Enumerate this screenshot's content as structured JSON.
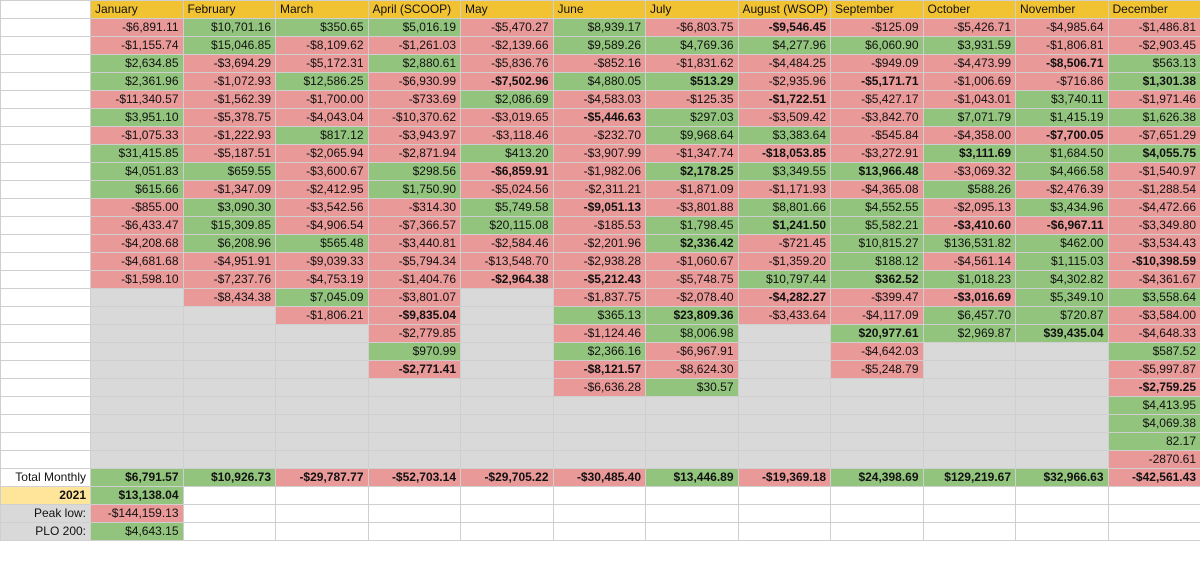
{
  "months": [
    "January",
    "February",
    "March",
    "April (SCOOP)",
    "May",
    "June",
    "July",
    "August (WSOP)",
    "September",
    "October",
    "November",
    "December"
  ],
  "grid": [
    [
      [
        "-$6,891.11",
        "r"
      ],
      [
        "$10,701.16",
        "g"
      ],
      [
        "$350.65",
        "g"
      ],
      [
        "$5,016.19",
        "g"
      ],
      [
        "-$5,470.27",
        "r"
      ],
      [
        "$8,939.17",
        "g"
      ],
      [
        "-$6,803.75",
        "r"
      ],
      [
        "-$9,546.45",
        "rb"
      ],
      [
        "-$125.09",
        "r"
      ],
      [
        "-$5,426.71",
        "r"
      ],
      [
        "-$4,985.64",
        "r"
      ],
      [
        "-$1,486.81",
        "r"
      ]
    ],
    [
      [
        "-$1,155.74",
        "r"
      ],
      [
        "$15,046.85",
        "g"
      ],
      [
        "-$8,109.62",
        "r"
      ],
      [
        "-$1,261.03",
        "r"
      ],
      [
        "-$2,139.66",
        "r"
      ],
      [
        "$9,589.26",
        "g"
      ],
      [
        "$4,769.36",
        "g"
      ],
      [
        "$4,277.96",
        "g"
      ],
      [
        "$6,060.90",
        "g"
      ],
      [
        "$3,931.59",
        "g"
      ],
      [
        "-$1,806.81",
        "r"
      ],
      [
        "-$2,903.45",
        "r"
      ]
    ],
    [
      [
        "$2,634.85",
        "g"
      ],
      [
        "-$3,694.29",
        "r"
      ],
      [
        "-$5,172.31",
        "r"
      ],
      [
        "$2,880.61",
        "g"
      ],
      [
        "-$5,836.76",
        "r"
      ],
      [
        "-$852.16",
        "r"
      ],
      [
        "-$1,831.62",
        "r"
      ],
      [
        "-$4,484.25",
        "r"
      ],
      [
        "-$949.09",
        "r"
      ],
      [
        "-$4,473.99",
        "r"
      ],
      [
        "-$8,506.71",
        "rb"
      ],
      [
        "$563.13",
        "g"
      ]
    ],
    [
      [
        "$2,361.96",
        "g"
      ],
      [
        "-$1,072.93",
        "r"
      ],
      [
        "$12,586.25",
        "g"
      ],
      [
        "-$6,930.99",
        "r"
      ],
      [
        "-$7,502.96",
        "rb"
      ],
      [
        "$4,880.05",
        "g"
      ],
      [
        "$513.29",
        "gb"
      ],
      [
        "-$2,935.96",
        "r"
      ],
      [
        "-$5,171.71",
        "rb"
      ],
      [
        "-$1,006.69",
        "r"
      ],
      [
        "-$716.86",
        "r"
      ],
      [
        "$1,301.38",
        "gb"
      ]
    ],
    [
      [
        "-$11,340.57",
        "r"
      ],
      [
        "-$1,562.39",
        "r"
      ],
      [
        "-$1,700.00",
        "r"
      ],
      [
        "-$733.69",
        "r"
      ],
      [
        "$2,086.69",
        "g"
      ],
      [
        "-$4,583.03",
        "r"
      ],
      [
        "-$125.35",
        "r"
      ],
      [
        "-$1,722.51",
        "rb"
      ],
      [
        "-$5,427.17",
        "r"
      ],
      [
        "-$1,043.01",
        "r"
      ],
      [
        "$3,740.11",
        "g"
      ],
      [
        "-$1,971.46",
        "r"
      ]
    ],
    [
      [
        "$3,951.10",
        "g"
      ],
      [
        "-$5,378.75",
        "r"
      ],
      [
        "-$4,043.04",
        "r"
      ],
      [
        "-$10,370.62",
        "r"
      ],
      [
        "-$3,019.65",
        "r"
      ],
      [
        "-$5,446.63",
        "rb"
      ],
      [
        "$297.03",
        "g"
      ],
      [
        "-$3,509.42",
        "r"
      ],
      [
        "-$3,842.70",
        "r"
      ],
      [
        "$7,071.79",
        "g"
      ],
      [
        "$1,415.19",
        "g"
      ],
      [
        "$1,626.38",
        "g"
      ]
    ],
    [
      [
        "-$1,075.33",
        "r"
      ],
      [
        "-$1,222.93",
        "r"
      ],
      [
        "$817.12",
        "g"
      ],
      [
        "-$3,943.97",
        "r"
      ],
      [
        "-$3,118.46",
        "r"
      ],
      [
        "-$232.70",
        "r"
      ],
      [
        "$9,968.64",
        "g"
      ],
      [
        "$3,383.64",
        "g"
      ],
      [
        "-$545.84",
        "r"
      ],
      [
        "-$4,358.00",
        "r"
      ],
      [
        "-$7,700.05",
        "rb"
      ],
      [
        "-$7,651.29",
        "r"
      ]
    ],
    [
      [
        "$31,415.85",
        "g"
      ],
      [
        "-$5,187.51",
        "r"
      ],
      [
        "-$2,065.94",
        "r"
      ],
      [
        "-$2,871.94",
        "r"
      ],
      [
        "$413.20",
        "g"
      ],
      [
        "-$3,907.99",
        "r"
      ],
      [
        "-$1,347.74",
        "r"
      ],
      [
        "-$18,053.85",
        "rb"
      ],
      [
        "-$3,272.91",
        "r"
      ],
      [
        "$3,111.69",
        "gb"
      ],
      [
        "$1,684.50",
        "g"
      ],
      [
        "$4,055.75",
        "gb"
      ]
    ],
    [
      [
        "$4,051.83",
        "g"
      ],
      [
        "$659.55",
        "g"
      ],
      [
        "-$3,600.67",
        "r"
      ],
      [
        "$298.56",
        "g"
      ],
      [
        "-$6,859.91",
        "rb"
      ],
      [
        "-$1,982.06",
        "r"
      ],
      [
        "$2,178.25",
        "gb"
      ],
      [
        "$3,349.55",
        "g"
      ],
      [
        "$13,966.48",
        "gb"
      ],
      [
        "-$3,069.32",
        "r"
      ],
      [
        "$4,466.58",
        "g"
      ],
      [
        "-$1,540.97",
        "r"
      ]
    ],
    [
      [
        "$615.66",
        "g"
      ],
      [
        "-$1,347.09",
        "r"
      ],
      [
        "-$2,412.95",
        "r"
      ],
      [
        "$1,750.90",
        "g"
      ],
      [
        "-$5,024.56",
        "r"
      ],
      [
        "-$2,311.21",
        "r"
      ],
      [
        "-$1,871.09",
        "r"
      ],
      [
        "-$1,171.93",
        "r"
      ],
      [
        "-$4,365.08",
        "r"
      ],
      [
        "$588.26",
        "g"
      ],
      [
        "-$2,476.39",
        "r"
      ],
      [
        "-$1,288.54",
        "r"
      ]
    ],
    [
      [
        "-$855.00",
        "r"
      ],
      [
        "$3,090.30",
        "g"
      ],
      [
        "-$3,542.56",
        "r"
      ],
      [
        "-$314.30",
        "r"
      ],
      [
        "$5,749.58",
        "g"
      ],
      [
        "-$9,051.13",
        "rb"
      ],
      [
        "-$3,801.88",
        "r"
      ],
      [
        "$8,801.66",
        "g"
      ],
      [
        "$4,552.55",
        "g"
      ],
      [
        "-$2,095.13",
        "r"
      ],
      [
        "$3,434.96",
        "g"
      ],
      [
        "-$4,472.66",
        "r"
      ]
    ],
    [
      [
        "-$6,433.47",
        "r"
      ],
      [
        "$15,309.85",
        "g"
      ],
      [
        "-$4,906.54",
        "r"
      ],
      [
        "-$7,366.57",
        "r"
      ],
      [
        "$20,115.08",
        "g"
      ],
      [
        "-$185.53",
        "r"
      ],
      [
        "$1,798.45",
        "g"
      ],
      [
        "$1,241.50",
        "gb"
      ],
      [
        "$5,582.21",
        "g"
      ],
      [
        "-$3,410.60",
        "rb"
      ],
      [
        "-$6,967.11",
        "rb"
      ],
      [
        "-$3,349.80",
        "r"
      ]
    ],
    [
      [
        "-$4,208.68",
        "r"
      ],
      [
        "$6,208.96",
        "g"
      ],
      [
        "$565.48",
        "g"
      ],
      [
        "-$3,440.81",
        "r"
      ],
      [
        "-$2,584.46",
        "r"
      ],
      [
        "-$2,201.96",
        "r"
      ],
      [
        "$2,336.42",
        "gb"
      ],
      [
        "-$721.45",
        "r"
      ],
      [
        "$10,815.27",
        "g"
      ],
      [
        "$136,531.82",
        "g"
      ],
      [
        "$462.00",
        "g"
      ],
      [
        "-$3,534.43",
        "r"
      ]
    ],
    [
      [
        "-$4,681.68",
        "r"
      ],
      [
        "-$4,951.91",
        "r"
      ],
      [
        "-$9,039.33",
        "r"
      ],
      [
        "-$5,794.34",
        "r"
      ],
      [
        "-$13,548.70",
        "r"
      ],
      [
        "-$2,938.28",
        "r"
      ],
      [
        "-$1,060.67",
        "r"
      ],
      [
        "-$1,359.20",
        "r"
      ],
      [
        "$188.12",
        "g"
      ],
      [
        "-$4,561.14",
        "r"
      ],
      [
        "$1,115.03",
        "g"
      ],
      [
        "-$10,398.59",
        "rb"
      ]
    ],
    [
      [
        "-$1,598.10",
        "r"
      ],
      [
        "-$7,237.76",
        "r"
      ],
      [
        "-$4,753.19",
        "r"
      ],
      [
        "-$1,404.76",
        "r"
      ],
      [
        "-$2,964.38",
        "rb"
      ],
      [
        "-$5,212.43",
        "rb"
      ],
      [
        "-$5,748.75",
        "r"
      ],
      [
        "$10,797.44",
        "g"
      ],
      [
        "$362.52",
        "gb"
      ],
      [
        "$1,018.23",
        "g"
      ],
      [
        "$4,302.82",
        "g"
      ],
      [
        "-$4,361.67",
        "r"
      ]
    ],
    [
      [
        "",
        "e"
      ],
      [
        "-$8,434.38",
        "r"
      ],
      [
        "$7,045.09",
        "g"
      ],
      [
        "-$3,801.07",
        "r"
      ],
      [
        "",
        "e"
      ],
      [
        "-$1,837.75",
        "r"
      ],
      [
        "-$2,078.40",
        "r"
      ],
      [
        "-$4,282.27",
        "rb"
      ],
      [
        "-$399.47",
        "r"
      ],
      [
        "-$3,016.69",
        "rb"
      ],
      [
        "$5,349.10",
        "g"
      ],
      [
        "$3,558.64",
        "g"
      ]
    ],
    [
      [
        "",
        "e"
      ],
      [
        "",
        "e"
      ],
      [
        "-$1,806.21",
        "r"
      ],
      [
        "-$9,835.04",
        "rb"
      ],
      [
        "",
        "e"
      ],
      [
        "$365.13",
        "g"
      ],
      [
        "$23,809.36",
        "gb"
      ],
      [
        "-$3,433.64",
        "r"
      ],
      [
        "-$4,117.09",
        "r"
      ],
      [
        "$6,457.70",
        "g"
      ],
      [
        "$720.87",
        "g"
      ],
      [
        "-$3,584.00",
        "r"
      ]
    ],
    [
      [
        "",
        "e"
      ],
      [
        "",
        "e"
      ],
      [
        "",
        "e"
      ],
      [
        "-$2,779.85",
        "r"
      ],
      [
        "",
        "e"
      ],
      [
        "-$1,124.46",
        "r"
      ],
      [
        "$8,006.98",
        "g"
      ],
      [
        "",
        "e"
      ],
      [
        "$20,977.61",
        "gb"
      ],
      [
        "$2,969.87",
        "g"
      ],
      [
        "$39,435.04",
        "gb"
      ],
      [
        "-$4,648.33",
        "r"
      ]
    ],
    [
      [
        "",
        "e"
      ],
      [
        "",
        "e"
      ],
      [
        "",
        "e"
      ],
      [
        "$970.99",
        "g"
      ],
      [
        "",
        "e"
      ],
      [
        "$2,366.16",
        "g"
      ],
      [
        "-$6,967.91",
        "r"
      ],
      [
        "",
        "e"
      ],
      [
        "-$4,642.03",
        "r"
      ],
      [
        "",
        "e"
      ],
      [
        "",
        "e"
      ],
      [
        "$587.52",
        "g"
      ]
    ],
    [
      [
        "",
        "e"
      ],
      [
        "",
        "e"
      ],
      [
        "",
        "e"
      ],
      [
        "-$2,771.41",
        "rb"
      ],
      [
        "",
        "e"
      ],
      [
        "-$8,121.57",
        "rb"
      ],
      [
        "-$8,624.30",
        "r"
      ],
      [
        "",
        "e"
      ],
      [
        "-$5,248.79",
        "r"
      ],
      [
        "",
        "e"
      ],
      [
        "",
        "e"
      ],
      [
        "-$5,997.87",
        "r"
      ]
    ],
    [
      [
        "",
        "e"
      ],
      [
        "",
        "e"
      ],
      [
        "",
        "e"
      ],
      [
        "",
        "e"
      ],
      [
        "",
        "e"
      ],
      [
        "-$6,636.28",
        "r"
      ],
      [
        "$30.57",
        "g"
      ],
      [
        "",
        "e"
      ],
      [
        "",
        "e"
      ],
      [
        "",
        "e"
      ],
      [
        "",
        "e"
      ],
      [
        "-$2,759.25",
        "rb"
      ]
    ],
    [
      [
        "",
        "e"
      ],
      [
        "",
        "e"
      ],
      [
        "",
        "e"
      ],
      [
        "",
        "e"
      ],
      [
        "",
        "e"
      ],
      [
        "",
        "e"
      ],
      [
        "",
        "e"
      ],
      [
        "",
        "e"
      ],
      [
        "",
        "e"
      ],
      [
        "",
        "e"
      ],
      [
        "",
        "e"
      ],
      [
        "$4,413.95",
        "g"
      ]
    ],
    [
      [
        "",
        "e"
      ],
      [
        "",
        "e"
      ],
      [
        "",
        "e"
      ],
      [
        "",
        "e"
      ],
      [
        "",
        "e"
      ],
      [
        "",
        "e"
      ],
      [
        "",
        "e"
      ],
      [
        "",
        "e"
      ],
      [
        "",
        "e"
      ],
      [
        "",
        "e"
      ],
      [
        "",
        "e"
      ],
      [
        "$4,069.38",
        "g"
      ]
    ],
    [
      [
        "",
        "e"
      ],
      [
        "",
        "e"
      ],
      [
        "",
        "e"
      ],
      [
        "",
        "e"
      ],
      [
        "",
        "e"
      ],
      [
        "",
        "e"
      ],
      [
        "",
        "e"
      ],
      [
        "",
        "e"
      ],
      [
        "",
        "e"
      ],
      [
        "",
        "e"
      ],
      [
        "",
        "e"
      ],
      [
        "82.17",
        "g"
      ]
    ],
    [
      [
        "",
        "e"
      ],
      [
        "",
        "e"
      ],
      [
        "",
        "e"
      ],
      [
        "",
        "e"
      ],
      [
        "",
        "e"
      ],
      [
        "",
        "e"
      ],
      [
        "",
        "e"
      ],
      [
        "",
        "e"
      ],
      [
        "",
        "e"
      ],
      [
        "",
        "e"
      ],
      [
        "",
        "e"
      ],
      [
        "-2870.61",
        "r"
      ]
    ]
  ],
  "totals": {
    "label": "Total Monthly",
    "values": [
      [
        "$6,791.57",
        "gb"
      ],
      [
        "$10,926.73",
        "gb"
      ],
      [
        "-$29,787.77",
        "rb"
      ],
      [
        "-$52,703.14",
        "rb"
      ],
      [
        "-$29,705.22",
        "rb"
      ],
      [
        "-$30,485.40",
        "rb"
      ],
      [
        "$13,446.89",
        "gb"
      ],
      [
        "-$19,369.18",
        "rb"
      ],
      [
        "$24,398.69",
        "gb"
      ],
      [
        "$129,219.67",
        "gb"
      ],
      [
        "$32,966.63",
        "gb"
      ],
      [
        "-$42,561.43",
        "rb"
      ]
    ]
  },
  "summary": [
    {
      "label": "2021",
      "value": "$13,138.04",
      "label_style": "ybg",
      "value_style": "gb"
    },
    {
      "label": "Peak low:",
      "value": "-$144,159.13",
      "label_style": "gr",
      "value_style": "r"
    },
    {
      "label": "PLO 200:",
      "value": "$4,643.15",
      "label_style": "gr",
      "value_style": "g"
    }
  ]
}
